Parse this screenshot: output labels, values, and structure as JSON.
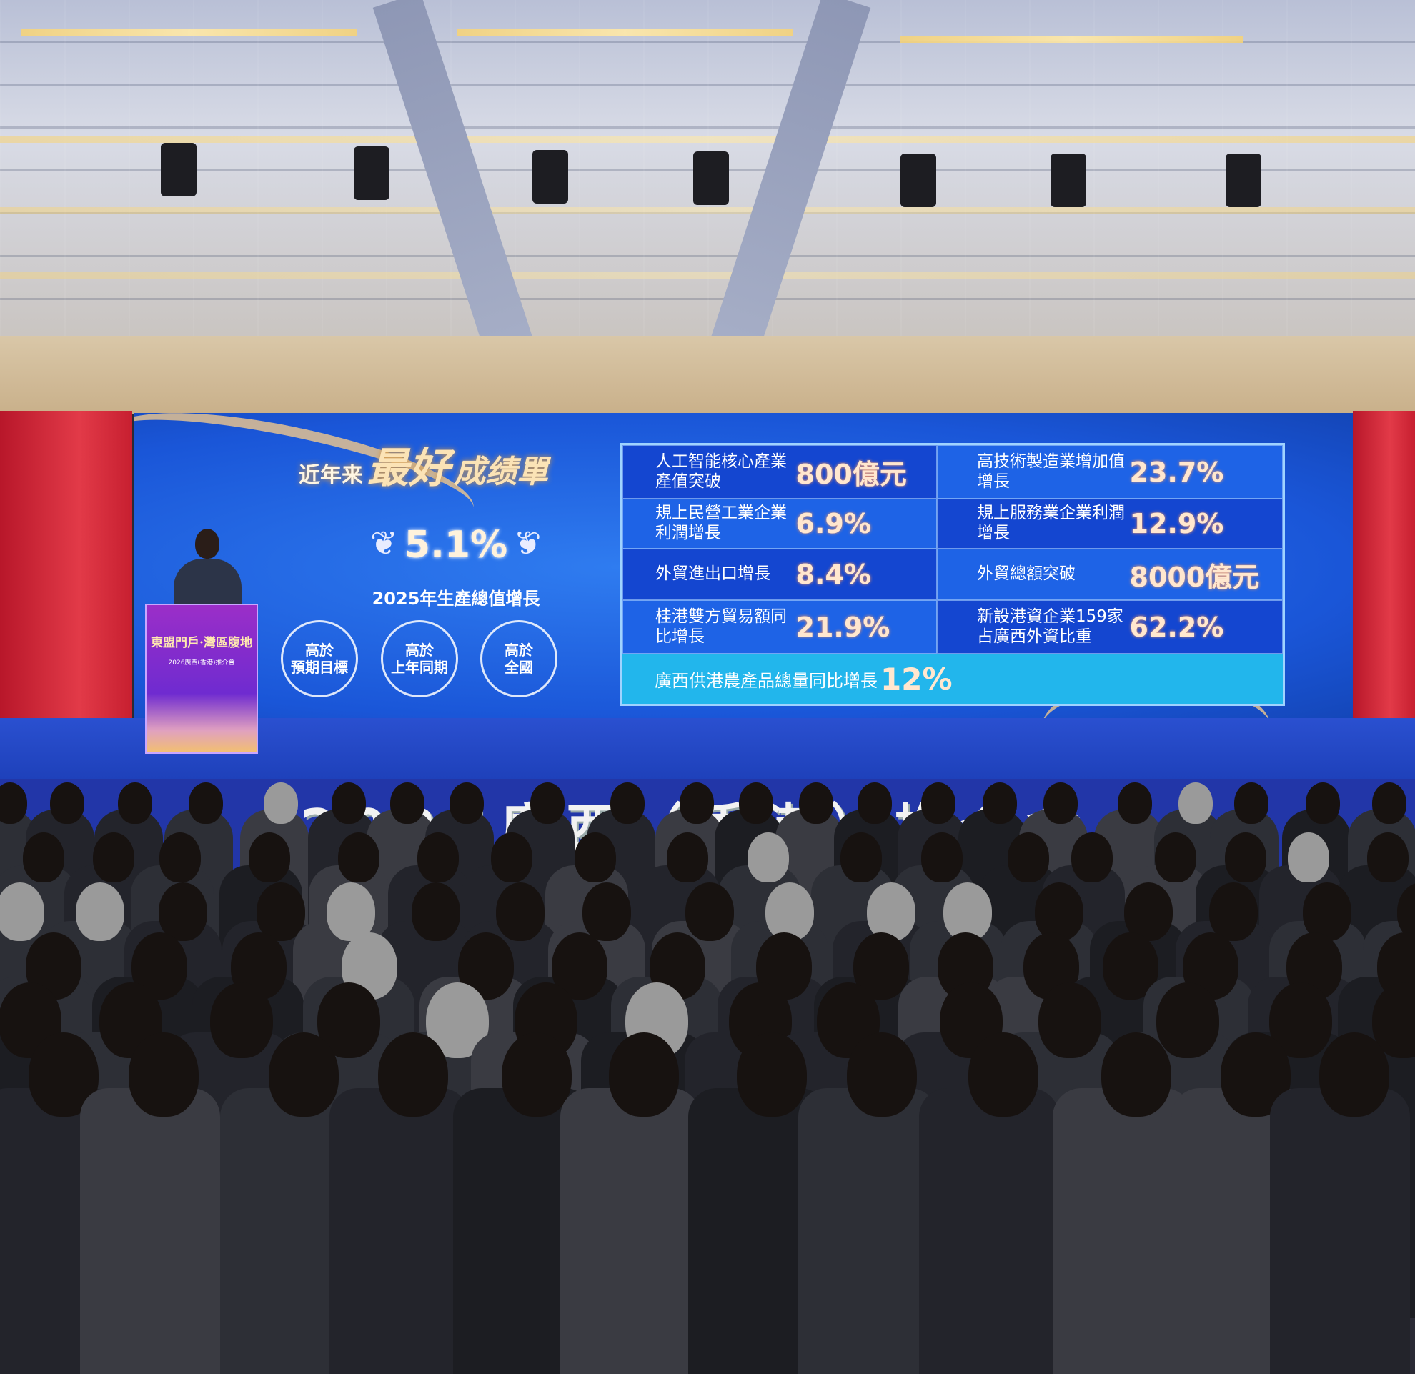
{
  "screen": {
    "title": {
      "part1": "近年来",
      "part2": "最好",
      "part3": "成绩單"
    },
    "gdp": {
      "value": "5.1%",
      "label": "2025年生產總值增長"
    },
    "badges": [
      {
        "line1": "高於",
        "line2": "預期目標"
      },
      {
        "line1": "高於",
        "line2": "上年同期"
      },
      {
        "line1": "高於",
        "line2": "全國"
      }
    ],
    "table": [
      {
        "label": "人工智能核心產業產值突破",
        "value": "800億元"
      },
      {
        "label": "高技術製造業增加值增長",
        "value": "23.7%"
      },
      {
        "label": "規上民營工業企業利潤增長",
        "value": "6.9%"
      },
      {
        "label": "規上服務業企業利潤增長",
        "value": "12.9%"
      },
      {
        "label": "外貿進出口增長",
        "value": "8.4%"
      },
      {
        "label": "外貿總額突破",
        "value": "8000億元"
      },
      {
        "label": "桂港雙方貿易額同比增長",
        "value": "21.9%"
      },
      {
        "label": "新設港資企業159家占廣西外資比重",
        "value": "62.2%"
      }
    ],
    "footer": {
      "label": "廣西供港農產品總量同比增長",
      "value": "12%"
    }
  },
  "podium": {
    "slogan": "東盟門戶·灣區腹地",
    "event": "2026廣西(香港)推介會"
  },
  "stage_banner": "2026廣西（香港）推介會",
  "colors": {
    "screen_blue": "#1a56d8",
    "value_gold": "#ffe7cf",
    "side_red": "#d62a3a"
  }
}
